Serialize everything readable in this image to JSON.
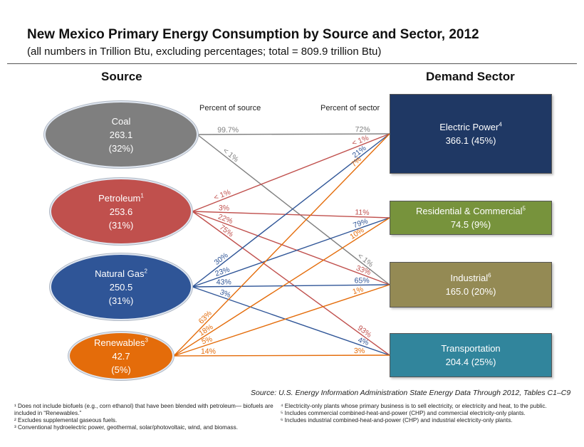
{
  "title": "New Mexico Primary Energy Consumption by Source and Sector, 2012",
  "subtitle": "(all numbers in Trillion Btu, excluding percentages; total = 809.9 trillion Btu)",
  "headers": {
    "source": "Source",
    "demand": "Demand Sector"
  },
  "column_notes": {
    "percent_of_source": "Percent of source",
    "percent_of_sector": "Percent of sector"
  },
  "colors": {
    "coal": "#7f7f7f",
    "petroleum": "#c0504d",
    "natural_gas": "#2f5597",
    "renewables": "#e46c0a",
    "electric_power": "#1f3864",
    "residential_commercial": "#77933c",
    "industrial": "#948a54",
    "transportation": "#31859c"
  },
  "sources": [
    {
      "key": "coal",
      "name": "Coal",
      "sup": "",
      "value": "263.1",
      "share": "(32%)"
    },
    {
      "key": "petroleum",
      "name": "Petroleum",
      "sup": "1",
      "value": "253.6",
      "share": "(31%)"
    },
    {
      "key": "natural_gas",
      "name": "Natural Gas",
      "sup": "2",
      "value": "250.5",
      "share": "(31%)"
    },
    {
      "key": "renewables",
      "name": "Renewables",
      "sup": "3",
      "value": "42.7",
      "share": "(5%)"
    }
  ],
  "sectors": [
    {
      "key": "electric_power",
      "name": "Electric Power",
      "sup": "4",
      "value": "366.1 (45%)"
    },
    {
      "key": "residential_commercial",
      "name": "Residential & Commercial",
      "sup": "5",
      "value": "74.5 (9%)"
    },
    {
      "key": "industrial",
      "name": "Industrial",
      "sup": "6",
      "value": "165.0 (20%)"
    },
    {
      "key": "transportation",
      "name": "Transportation",
      "sup": "",
      "value": "204.4 (25%)"
    }
  ],
  "flows": [
    {
      "from": "coal",
      "to": "electric_power",
      "pct_source": "99.7%",
      "pct_sector": "72%"
    },
    {
      "from": "coal",
      "to": "industrial",
      "pct_source": "< 1%",
      "pct_sector": "< 1%"
    },
    {
      "from": "petroleum",
      "to": "electric_power",
      "pct_source": "< 1%",
      "pct_sector": "< 1%"
    },
    {
      "from": "petroleum",
      "to": "residential_commercial",
      "pct_source": "3%",
      "pct_sector": "11%"
    },
    {
      "from": "petroleum",
      "to": "industrial",
      "pct_source": "22%",
      "pct_sector": "33%"
    },
    {
      "from": "petroleum",
      "to": "transportation",
      "pct_source": "75%",
      "pct_sector": "93%"
    },
    {
      "from": "natural_gas",
      "to": "electric_power",
      "pct_source": "30%",
      "pct_sector": "21%"
    },
    {
      "from": "natural_gas",
      "to": "residential_commercial",
      "pct_source": "23%",
      "pct_sector": "79%"
    },
    {
      "from": "natural_gas",
      "to": "industrial",
      "pct_source": "43%",
      "pct_sector": "65%"
    },
    {
      "from": "natural_gas",
      "to": "transportation",
      "pct_source": "3%",
      "pct_sector": "4%"
    },
    {
      "from": "renewables",
      "to": "electric_power",
      "pct_source": "63%",
      "pct_sector": "7%"
    },
    {
      "from": "renewables",
      "to": "residential_commercial",
      "pct_source": "18%",
      "pct_sector": "10%"
    },
    {
      "from": "renewables",
      "to": "industrial",
      "pct_source": "5%",
      "pct_sector": "1%"
    },
    {
      "from": "renewables",
      "to": "transportation",
      "pct_source": "14%",
      "pct_sector": "3%"
    }
  ],
  "source_citation": "Source: U.S. Energy Information Administration State Energy Data Through 2012, Tables C1–C9",
  "footnotes_left": [
    "¹ Does not include biofuels (e.g., corn ethanol) that have been blended with petroleum— biofuels are included in “Renewables.”",
    "² Excludes supplemental gaseous fuels.",
    "³ Conventional hydroelectric power, geothermal, solar/photovoltaic, wind, and biomass."
  ],
  "footnotes_right": [
    "⁴ Electricity-only plants whose primary business is to sell electricity, or electricity and heat, to the public.",
    "⁵ Includes commercial combined-heat-and-power (CHP) and commercial electricity-only plants.",
    "⁶ Includes industrial combined-heat-and-power (CHP) and industrial electricity-only plants."
  ]
}
